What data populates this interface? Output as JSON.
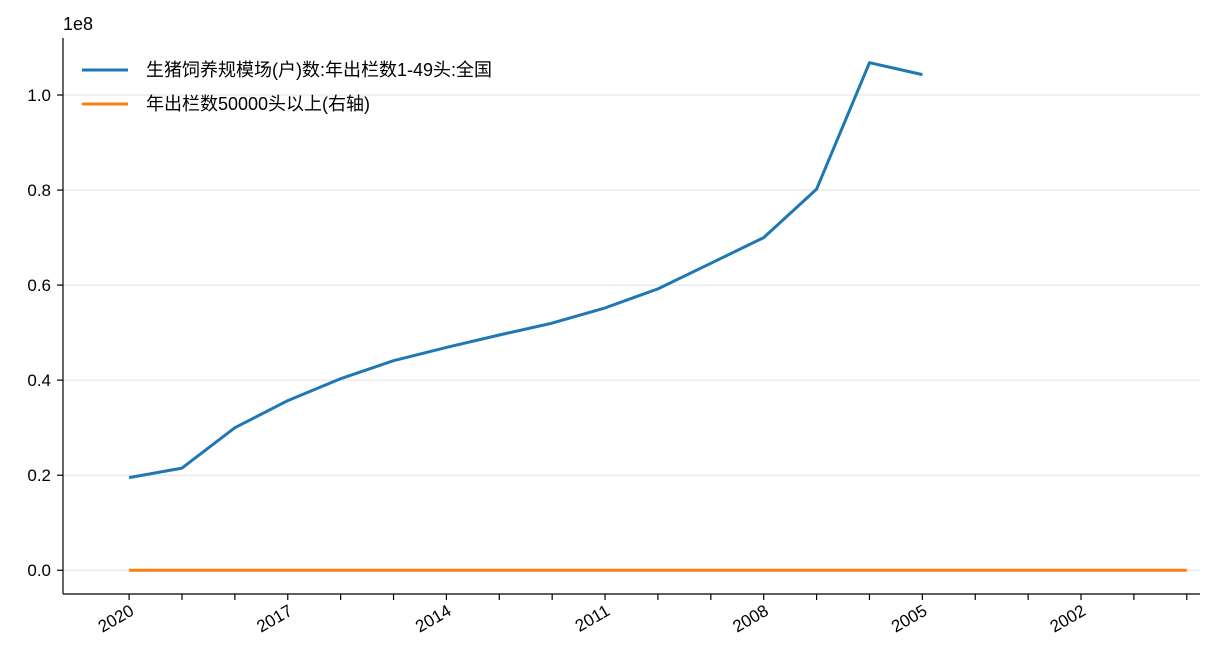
{
  "chart_data": {
    "type": "line",
    "x_axis": {
      "inverted": true,
      "xlim": [
        2021.25,
        1999.75
      ],
      "ticks": [
        2020,
        2017,
        2014,
        2011,
        2008,
        2005,
        2002
      ],
      "tick_labels": [
        "2020",
        "2017",
        "2014",
        "2011",
        "2008",
        "2005",
        "2002"
      ],
      "minor_ticks": [
        2020,
        2019,
        2018,
        2017,
        2016,
        2015,
        2014,
        2013,
        2012,
        2011,
        2010,
        2009,
        2008,
        2007,
        2006,
        2005,
        2004,
        2003,
        2002,
        2001,
        2000
      ]
    },
    "y_axis": {
      "ylim": [
        -0.05,
        1.12
      ],
      "ticks": [
        0.0,
        0.2,
        0.4,
        0.6,
        0.8,
        1.0
      ],
      "tick_labels": [
        "0.0",
        "0.2",
        "0.4",
        "0.6",
        "0.8",
        "1.0"
      ],
      "offset_label": "1e8",
      "grid": true
    },
    "legend_position": "upper-left",
    "series": [
      {
        "name": "生猪饲养规模场(户)数:年出栏数1-49头:全国",
        "color": "#1f77b4",
        "x": [
          2020,
          2019,
          2018,
          2017,
          2016,
          2015,
          2014,
          2013,
          2012,
          2011,
          2010,
          2009,
          2008,
          2007,
          2006,
          2005
        ],
        "y": [
          0.195,
          0.215,
          0.3,
          0.357,
          0.403,
          0.441,
          0.469,
          0.495,
          0.52,
          0.552,
          0.592,
          0.646,
          0.7,
          0.802,
          1.068,
          1.043
        ]
      },
      {
        "name": "年出栏数50000头以上(右轴)",
        "color": "#ff7f0e",
        "x": [
          2020,
          2019,
          2018,
          2017,
          2016,
          2015,
          2014,
          2013,
          2012,
          2011,
          2010,
          2009,
          2008,
          2007,
          2006,
          2005,
          2004,
          2003,
          2002,
          2001,
          2000
        ],
        "y": [
          0,
          0,
          0,
          0,
          0,
          0,
          0,
          0,
          0,
          0,
          0,
          0,
          0,
          0,
          0,
          0,
          0,
          0,
          0,
          0,
          0
        ]
      }
    ]
  }
}
